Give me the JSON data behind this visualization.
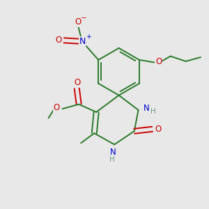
{
  "bg_color": "#e8e8e8",
  "bond_color": "#2a7a2a",
  "atom_colors": {
    "O": "#cc0000",
    "N": "#0000cc",
    "C": "#2a7a2a",
    "H": "#6a9a8a"
  },
  "lw": 1.4,
  "fs": 8.5,
  "fs_small": 7.5
}
